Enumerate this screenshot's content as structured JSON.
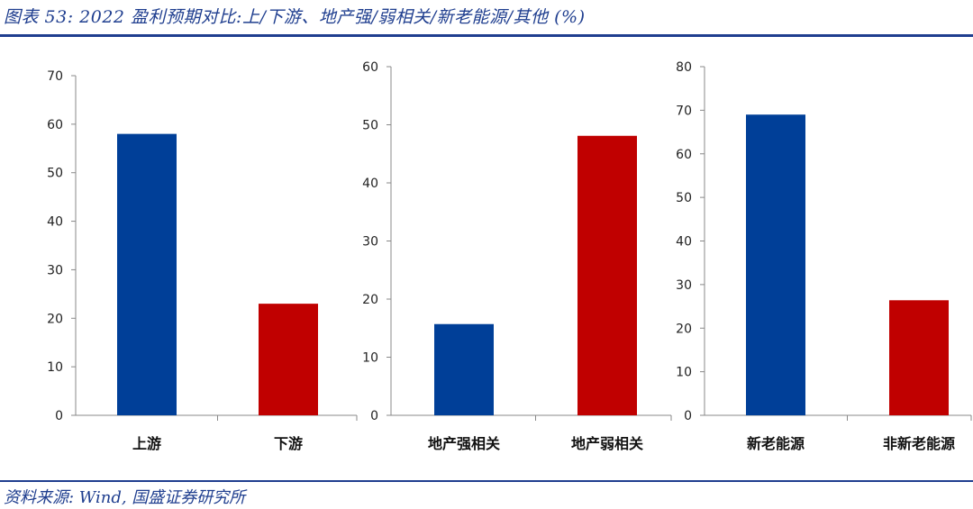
{
  "header": {
    "title": "图表 53:  2022 盈利预期对比:上/下游、地产强/弱相关/新老能源/其他 (%)"
  },
  "footer": {
    "source": "资料来源: Wind, 国盛证券研究所"
  },
  "colors": {
    "accent": "#1f3e8f",
    "blue": "#003f98",
    "red": "#c00000",
    "axis": "#888888"
  },
  "chart_data": [
    {
      "type": "bar",
      "categories": [
        "上游",
        "下游"
      ],
      "values": [
        58,
        23
      ],
      "ylim": [
        0,
        70
      ],
      "yticks": [
        0,
        10,
        20,
        30,
        40,
        50,
        60,
        70
      ],
      "bar_colors": [
        "#003f98",
        "#c00000"
      ],
      "grid": false
    },
    {
      "type": "bar",
      "categories": [
        "地产强相关",
        "地产弱相关"
      ],
      "values": [
        15.7,
        48.1
      ],
      "ylim": [
        0,
        60
      ],
      "yticks": [
        0,
        10,
        20,
        30,
        40,
        50,
        60
      ],
      "bar_colors": [
        "#003f98",
        "#c00000"
      ],
      "grid": false
    },
    {
      "type": "bar",
      "categories": [
        "新老能源",
        "非新老能源"
      ],
      "values": [
        69,
        26.4
      ],
      "ylim": [
        0,
        80
      ],
      "yticks": [
        0,
        10,
        20,
        30,
        40,
        50,
        60,
        70,
        80
      ],
      "bar_colors": [
        "#003f98",
        "#c00000"
      ],
      "grid": false
    }
  ]
}
